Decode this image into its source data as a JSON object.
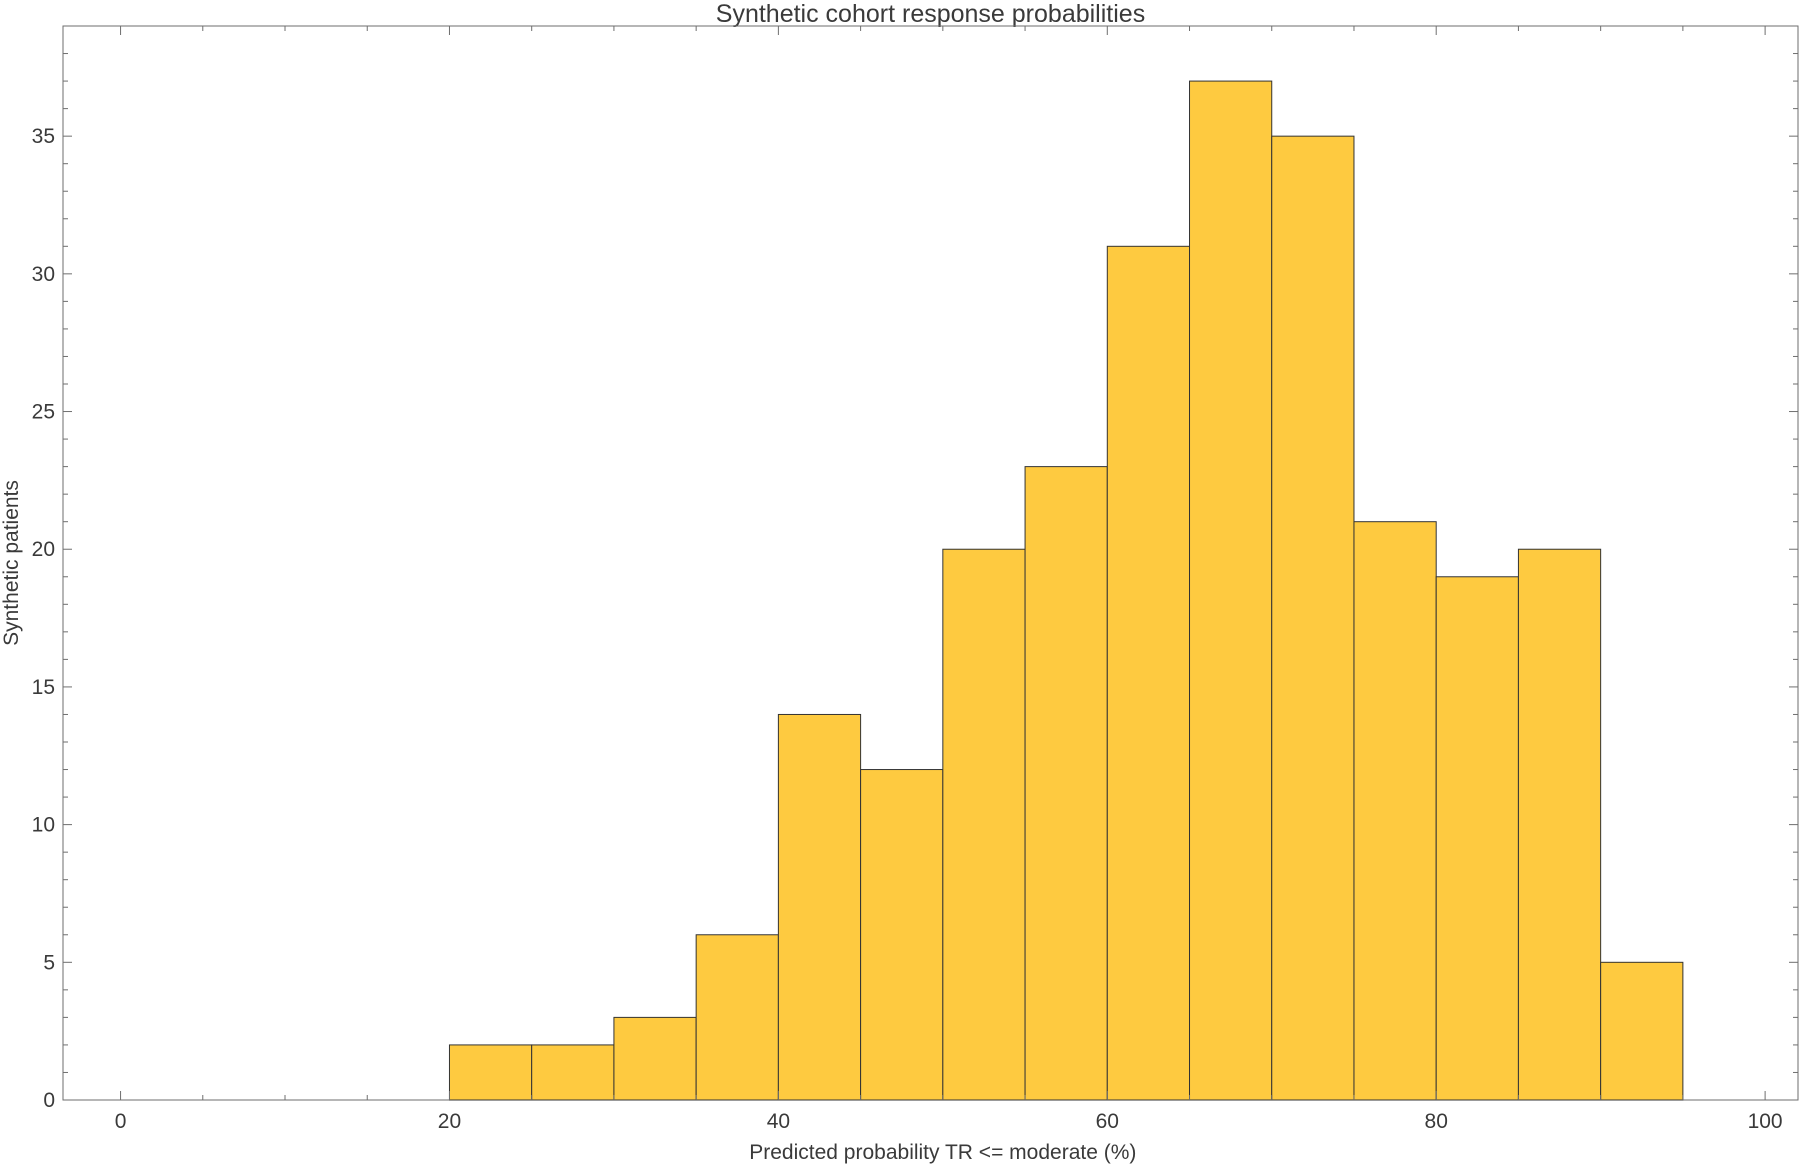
{
  "chart_data": {
    "type": "bar",
    "title": "Synthetic cohort response probabilities",
    "xlabel": "Predicted probability TR <= moderate (%)",
    "ylabel": "Synthetic patients",
    "xlim": [
      -3.5,
      102
    ],
    "ylim": [
      0,
      39
    ],
    "x_ticks": [
      0,
      20,
      40,
      60,
      80,
      100
    ],
    "y_ticks": [
      0,
      5,
      10,
      15,
      20,
      25,
      30,
      35
    ],
    "bar_color": "#FECA40",
    "bin_width": 5,
    "bins": [
      {
        "x0": 20,
        "x1": 25,
        "count": 2
      },
      {
        "x0": 25,
        "x1": 30,
        "count": 2
      },
      {
        "x0": 30,
        "x1": 35,
        "count": 3
      },
      {
        "x0": 35,
        "x1": 40,
        "count": 6
      },
      {
        "x0": 40,
        "x1": 45,
        "count": 14
      },
      {
        "x0": 45,
        "x1": 50,
        "count": 12
      },
      {
        "x0": 50,
        "x1": 55,
        "count": 20
      },
      {
        "x0": 55,
        "x1": 60,
        "count": 23
      },
      {
        "x0": 60,
        "x1": 65,
        "count": 31
      },
      {
        "x0": 65,
        "x1": 70,
        "count": 37
      },
      {
        "x0": 70,
        "x1": 75,
        "count": 35
      },
      {
        "x0": 75,
        "x1": 80,
        "count": 21
      },
      {
        "x0": 80,
        "x1": 85,
        "count": 19
      },
      {
        "x0": 85,
        "x1": 90,
        "count": 20
      },
      {
        "x0": 90,
        "x1": 95,
        "count": 5
      }
    ],
    "grid": false,
    "legend": "none"
  }
}
